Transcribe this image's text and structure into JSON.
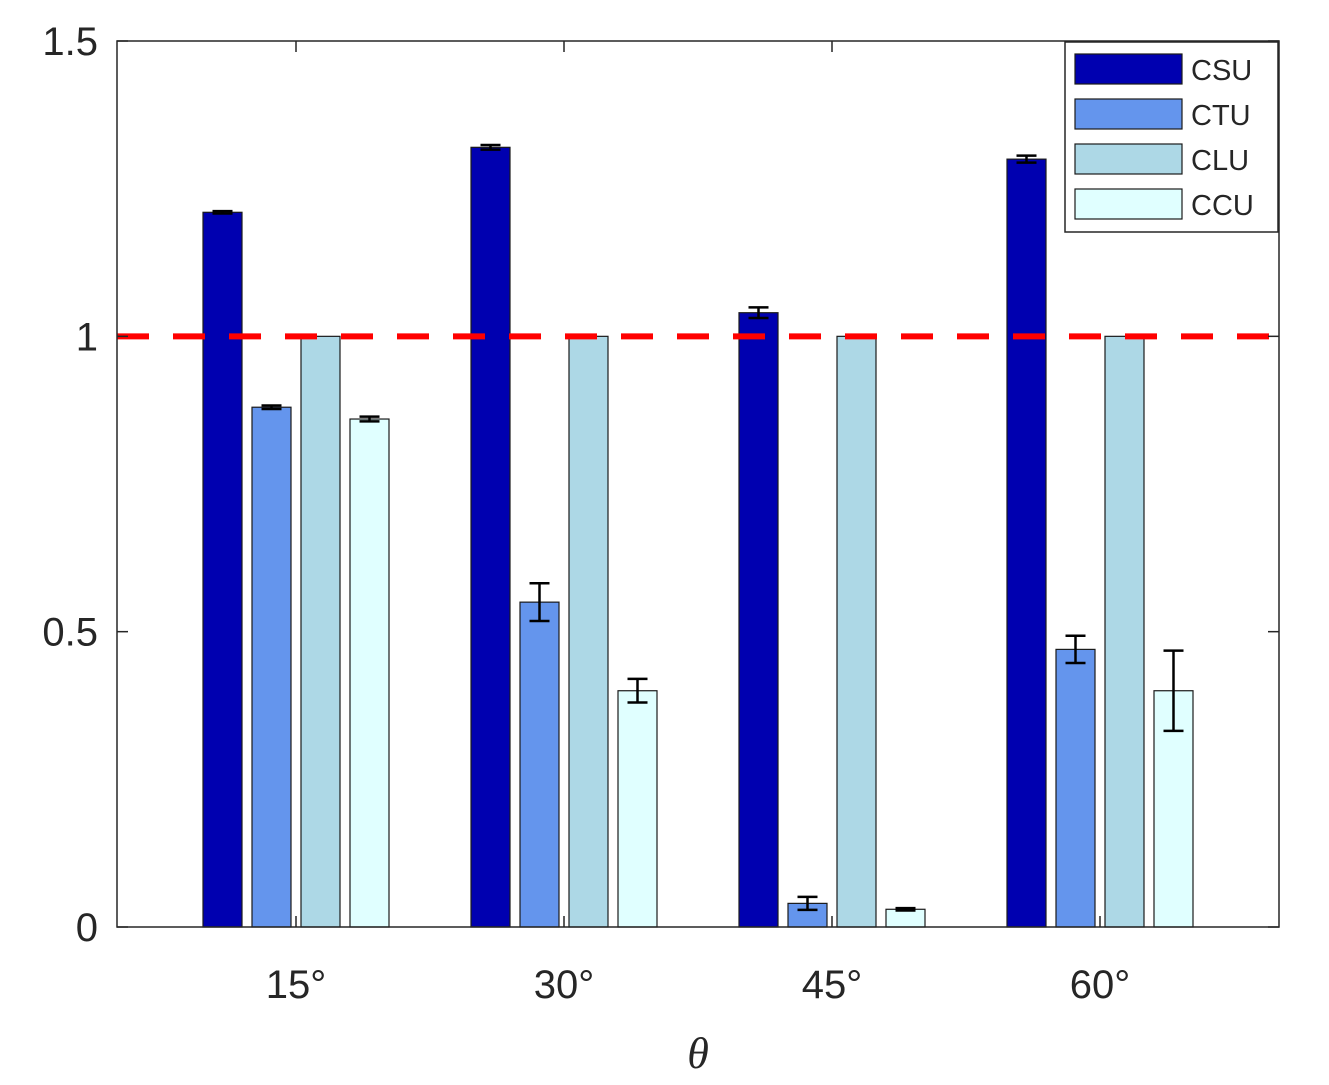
{
  "chart_data": {
    "type": "bar",
    "title": "",
    "xlabel": "θ",
    "ylabel": "",
    "categories": [
      "15°",
      "30°",
      "45°",
      "60°"
    ],
    "ylim": [
      0,
      1.5
    ],
    "yticks": [
      0,
      0.5,
      1,
      1.5
    ],
    "ytick_labels": [
      "0",
      "0.5",
      "1",
      "1.5"
    ],
    "grid": false,
    "legend_position": "top-right",
    "reference_line": {
      "y": 1,
      "style": "dashed",
      "color": "#ff0000"
    },
    "series": [
      {
        "name": "CSU",
        "color": "#0000b0",
        "values": [
          1.21,
          1.32,
          1.04,
          1.3
        ],
        "errors": [
          0.002,
          0.004,
          0.009,
          0.006
        ]
      },
      {
        "name": "CTU",
        "color": "#6495ed",
        "values": [
          0.88,
          0.55,
          0.04,
          0.47
        ],
        "errors": [
          0.003,
          0.032,
          0.011,
          0.023
        ]
      },
      {
        "name": "CLU",
        "color": "#add8e6",
        "values": [
          1.0,
          1.0,
          1.0,
          1.0
        ],
        "errors": [
          0.0,
          0.0,
          0.001,
          0.0
        ]
      },
      {
        "name": "CCU",
        "color": "#e0ffff",
        "values": [
          0.86,
          0.4,
          0.03,
          0.4
        ],
        "errors": [
          0.004,
          0.02,
          0.002,
          0.068
        ]
      }
    ]
  }
}
